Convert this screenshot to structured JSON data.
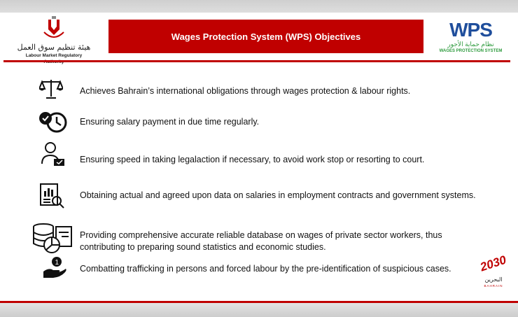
{
  "header": {
    "title": "Wages Protection System (WPS) Objectives",
    "left_logo": {
      "arabic": "هيئة تنظيم سوق العمل",
      "english": "Labour Market Regulatory Authority"
    },
    "right_logo": {
      "mark": "WPS",
      "arabic": "نظام حماية الأجور",
      "english": "WAGES PROTECTION SYSTEM"
    }
  },
  "objectives": [
    {
      "icon": "scales-icon",
      "text": "Achieves Bahrain’s international obligations through wages protection & labour rights."
    },
    {
      "icon": "clock-check-icon",
      "text": "Ensuring salary payment in due time regularly."
    },
    {
      "icon": "person-message-icon",
      "text": "Ensuring speed in taking legalaction  if necessary, to avoid work stop or resorting to court."
    },
    {
      "icon": "report-search-icon",
      "text": "Obtaining actual and agreed upon data on salaries in employment contracts and government systems."
    },
    {
      "icon": "database-chart-icon",
      "text": "Providing comprehensive accurate reliable database on wages of private sector workers, thus contributing to preparing sound statistics and economic studies."
    },
    {
      "icon": "hand-coin-icon",
      "text": "Combatting trafficking in persons and forced labour by the pre-identification of suspicious cases."
    }
  ],
  "footer_logo": {
    "mark": "2030",
    "arabic": "البحرين",
    "english": "BAHRAIN"
  },
  "colors": {
    "accent": "#c00000",
    "wps_blue": "#1f4e9c",
    "wps_green": "#2e9b3e"
  }
}
